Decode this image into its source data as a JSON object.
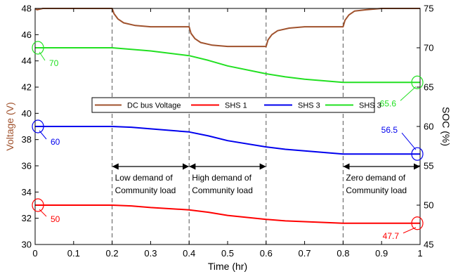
{
  "colors": {
    "dc_bus": "#a0522d",
    "shs1": "#ff0000",
    "shs2": "#0000ee",
    "shs3": "#22e022",
    "left_axis": "#a0522d"
  },
  "chart_data": {
    "type": "line",
    "xlabel": "Time (hr)",
    "ylabel_left": "Voltage (V)",
    "ylabel_right": "SOC (%)",
    "xlim": [
      0,
      1
    ],
    "ylim_left": [
      30,
      48
    ],
    "ylim_right": [
      45,
      75
    ],
    "x_ticks": [
      "0",
      "0.1",
      "0.2",
      "0.3",
      "0.4",
      "0.5",
      "0.6",
      "0.7",
      "0.8",
      "0.9",
      "1"
    ],
    "y_left_ticks": [
      "30",
      "32",
      "34",
      "36",
      "38",
      "40",
      "42",
      "44",
      "46",
      "48"
    ],
    "y_right_ticks": [
      "45",
      "50",
      "55",
      "60",
      "65",
      "70",
      "75"
    ],
    "phase_boundaries": [
      0.2,
      0.4,
      0.6,
      0.8
    ],
    "series": [
      {
        "name": "DC bus Voltage",
        "axis": "left",
        "x": [
          0,
          0.005,
          0.02,
          0.2,
          0.205,
          0.215,
          0.23,
          0.26,
          0.3,
          0.4,
          0.405,
          0.415,
          0.43,
          0.46,
          0.5,
          0.6,
          0.605,
          0.615,
          0.63,
          0.66,
          0.7,
          0.8,
          0.805,
          0.815,
          0.83,
          0.86,
          0.9,
          1.0
        ],
        "values": [
          48.0,
          47.9,
          48.0,
          48.0,
          47.6,
          47.2,
          46.9,
          46.7,
          46.6,
          46.6,
          46.1,
          45.7,
          45.4,
          45.2,
          45.1,
          45.1,
          45.6,
          46.0,
          46.3,
          46.5,
          46.6,
          46.6,
          47.1,
          47.5,
          47.8,
          47.9,
          48.0,
          48.0
        ]
      },
      {
        "name": "SHS 1",
        "axis": "right",
        "x": [
          0,
          0.2,
          0.25,
          0.3,
          0.4,
          0.45,
          0.5,
          0.6,
          0.65,
          0.7,
          0.8,
          0.85,
          1.0
        ],
        "values": [
          50.0,
          50.0,
          49.9,
          49.7,
          49.4,
          49.1,
          48.7,
          48.2,
          48.0,
          47.9,
          47.7,
          47.7,
          47.7
        ]
      },
      {
        "name": "SHS 3",
        "axis": "right",
        "x": [
          0,
          0.2,
          0.25,
          0.3,
          0.4,
          0.45,
          0.5,
          0.6,
          0.65,
          0.7,
          0.8,
          0.85,
          1.0
        ],
        "values": [
          60.0,
          60.0,
          59.9,
          59.7,
          59.3,
          58.8,
          58.2,
          57.4,
          57.1,
          56.9,
          56.5,
          56.5,
          56.5
        ]
      },
      {
        "name": "SHS 3",
        "axis": "right",
        "x": [
          0,
          0.2,
          0.25,
          0.3,
          0.4,
          0.45,
          0.5,
          0.6,
          0.65,
          0.7,
          0.8,
          0.85,
          1.0
        ],
        "values": [
          70.0,
          70.0,
          69.8,
          69.6,
          69.0,
          68.4,
          67.7,
          66.7,
          66.3,
          66.0,
          65.6,
          65.6,
          65.6
        ]
      }
    ],
    "annotations": [
      {
        "text": "70",
        "series": 3,
        "end": "start",
        "value": 70
      },
      {
        "text": "65.6",
        "series": 3,
        "end": "end",
        "value": 65.6
      },
      {
        "text": "60",
        "series": 2,
        "end": "start",
        "value": 60
      },
      {
        "text": "56.5",
        "series": 2,
        "end": "end",
        "value": 56.5
      },
      {
        "text": "50",
        "series": 1,
        "end": "start",
        "value": 50
      },
      {
        "text": "47.7",
        "series": 1,
        "end": "end",
        "value": 47.7
      }
    ],
    "phases": [
      {
        "x_start": 0.2,
        "x_end": 0.4,
        "line1": "Low demand of",
        "line2": "Community load"
      },
      {
        "x_start": 0.4,
        "x_end": 0.6,
        "line1": "High demand of",
        "line2": "Community load"
      },
      {
        "x_start": 0.8,
        "x_end": 1.0,
        "line1": "Zero demand of",
        "line2": "Community load"
      }
    ],
    "legend": {
      "placement": "center"
    },
    "grid": false
  }
}
